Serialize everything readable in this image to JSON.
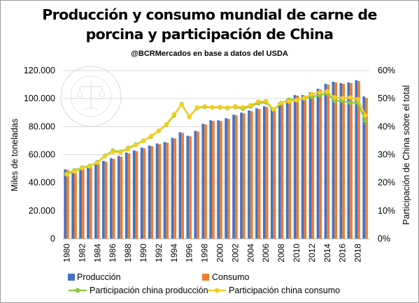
{
  "chart_data": {
    "type": "bar",
    "title_line1": "Producción y consumo mundial de carne de",
    "title_line2": "porcina y participación de China",
    "subtitle": "@BCRMercados  en base a datos del USDA",
    "ylabel_left": "Miles de toneladas",
    "ylabel_right": "Participación de China sobre el total",
    "ylim_left": [
      0,
      120000
    ],
    "ylim_right": [
      0,
      60
    ],
    "left_ticks": [
      "0",
      "20.000",
      "40.000",
      "60.000",
      "80.000",
      "100.000",
      "120.000"
    ],
    "right_ticks": [
      "0%",
      "10%",
      "20%",
      "30%",
      "40%",
      "50%",
      "60%"
    ],
    "x_tick_labels": [
      "1980",
      "1982",
      "1984",
      "1986",
      "1988",
      "1990",
      "1992",
      "1994",
      "1996",
      "1998",
      "2000",
      "2002",
      "2004",
      "2006",
      "2008",
      "2010",
      "2012",
      "2014",
      "2016",
      "2018"
    ],
    "categories": [
      1980,
      1981,
      1982,
      1983,
      1984,
      1985,
      1986,
      1987,
      1988,
      1989,
      1990,
      1991,
      1992,
      1993,
      1994,
      1995,
      1996,
      1997,
      1998,
      1999,
      2000,
      2001,
      2002,
      2003,
      2004,
      2005,
      2006,
      2007,
      2008,
      2009,
      2010,
      2011,
      2012,
      2013,
      2014,
      2015,
      2016,
      2017,
      2018,
      2019
    ],
    "bar_series": [
      {
        "name": "Producción",
        "color": "#4472c4",
        "values": [
          49500,
          48500,
          50500,
          52000,
          54000,
          55500,
          57500,
          59000,
          61500,
          63000,
          65000,
          66500,
          68000,
          69000,
          72000,
          76000,
          73500,
          77000,
          82000,
          84500,
          84500,
          86000,
          88500,
          90000,
          91500,
          93000,
          94500,
          93500,
          97000,
          99500,
          102500,
          102500,
          104500,
          107000,
          110500,
          112000,
          111000,
          111500,
          113000,
          101500
        ]
      },
      {
        "name": "Consumo",
        "color": "#ed7d31",
        "values": [
          49000,
          48000,
          50000,
          51500,
          53500,
          55000,
          57000,
          58500,
          61000,
          62500,
          64500,
          66000,
          67500,
          68500,
          71500,
          75500,
          73000,
          76500,
          81500,
          84000,
          84000,
          85500,
          88000,
          89500,
          91000,
          92500,
          94000,
          93000,
          96500,
          99000,
          102000,
          102000,
          104000,
          106500,
          110000,
          111500,
          110500,
          111000,
          112500,
          100500
        ]
      }
    ],
    "line_series": [
      {
        "name": "Participación china producción",
        "color": "#8fc642",
        "values": [
          23.3,
          24.4,
          25.4,
          26.0,
          27.3,
          29.6,
          31.4,
          31.0,
          32.3,
          33.6,
          35.0,
          36.4,
          38.5,
          40.6,
          44.0,
          48.0,
          43.5,
          46.6,
          47.0,
          46.8,
          46.8,
          46.6,
          47.0,
          46.4,
          47.2,
          48.4,
          48.6,
          46.0,
          48.2,
          49.6,
          49.6,
          50.0,
          50.6,
          51.2,
          51.8,
          49.2,
          49.2,
          48.5,
          48.5,
          42.0
        ]
      },
      {
        "name": "Participación china consumo",
        "color": "#f3cf1d",
        "values": [
          22.9,
          24.0,
          25.2,
          25.8,
          27.1,
          29.4,
          31.0,
          30.8,
          32.0,
          33.4,
          34.9,
          36.6,
          38.6,
          40.8,
          44.4,
          47.8,
          43.4,
          46.8,
          47.2,
          46.9,
          47.0,
          46.8,
          47.2,
          46.9,
          47.6,
          48.9,
          49.1,
          46.2,
          48.5,
          49.0,
          49.4,
          50.2,
          51.6,
          52.2,
          52.6,
          50.4,
          50.2,
          50.4,
          49.8,
          44.0
        ]
      }
    ],
    "grid": true,
    "legend_position": "bottom"
  }
}
